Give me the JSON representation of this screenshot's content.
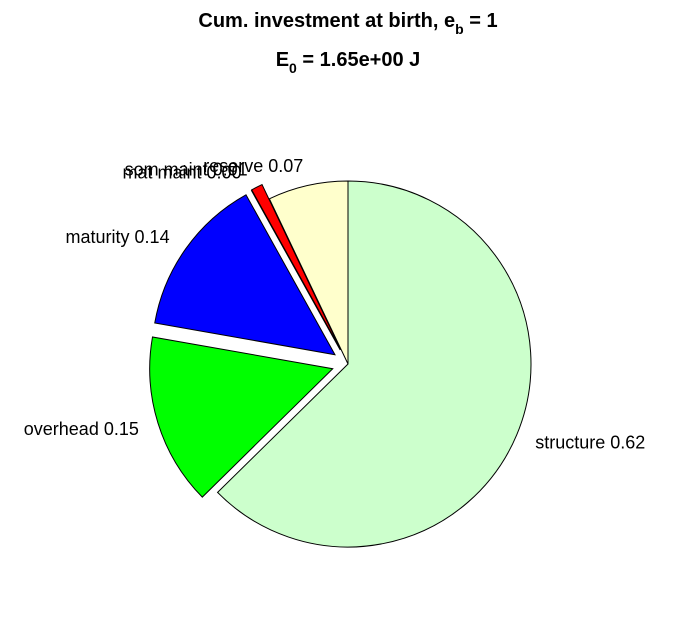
{
  "chart_data": {
    "type": "pie",
    "title": [
      "Cum. investment at birth, e",
      "b",
      " = 1"
    ],
    "subtitle": [
      "E",
      "0",
      " = 1.65e+00 J"
    ],
    "categories": [
      "structure",
      "overhead",
      "maturity",
      "mat maint",
      "som maint",
      "reserve"
    ],
    "values": [
      0.62,
      0.15,
      0.14,
      0.0,
      0.01,
      0.07
    ],
    "value_labels": [
      "0.62",
      "0.15",
      "0.14",
      "0.00",
      "0.01",
      "0.07"
    ],
    "colors": [
      "#ccffcc",
      "#00ff00",
      "#0000ff",
      "#ff00ff",
      "#ff0000",
      "#ffffcc"
    ],
    "explode": [
      false,
      true,
      true,
      true,
      true,
      false
    ]
  }
}
